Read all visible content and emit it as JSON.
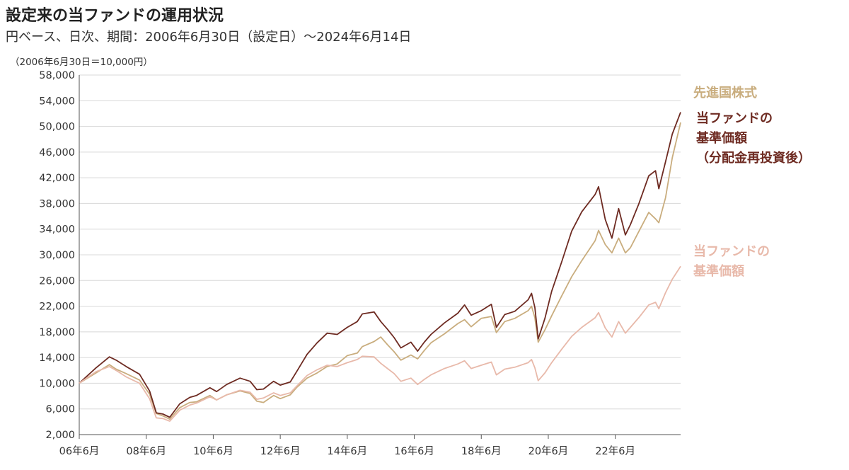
{
  "header": {
    "title": "設定来の当ファンドの運用状況",
    "subtitle": "円ベース、日次、期間：2006年6月30日（設定日）～2024年6月14日",
    "unit_note": "（2006年6月30日＝10,000円）"
  },
  "colors": {
    "developed": "#c9ad7e",
    "reinvested": "#6e2b22",
    "nav": "#e8b9aa",
    "grid": "#d8d8d8",
    "axis": "#555555"
  },
  "legend": {
    "developed": [
      "先進国株式"
    ],
    "reinvested": [
      "当ファンドの",
      "基準価額",
      "（分配金再投資後）"
    ],
    "nav": [
      "当ファンドの",
      "基準価額"
    ]
  },
  "chart_data": {
    "type": "line",
    "title": "設定来の当ファンドの運用状況",
    "ylim": [
      2000,
      58000
    ],
    "xlim": [
      2006.5,
      2024.45
    ],
    "y_ticks": [
      2000,
      6000,
      10000,
      14000,
      18000,
      22000,
      26000,
      30000,
      34000,
      38000,
      42000,
      46000,
      50000,
      54000,
      58000
    ],
    "y_tick_labels": [
      "2,000",
      "6,000",
      "10,000",
      "14,000",
      "18,000",
      "22,000",
      "26,000",
      "30,000",
      "34,000",
      "38,000",
      "42,000",
      "46,000",
      "50,000",
      "54,000",
      "58,000"
    ],
    "x_ticks": [
      2006.5,
      2008.5,
      2010.5,
      2012.5,
      2014.5,
      2016.5,
      2018.5,
      2020.5,
      2022.5
    ],
    "x_tick_labels": [
      "06年6月",
      "08年6月",
      "10年6月",
      "12年6月",
      "14年6月",
      "16年6月",
      "18年6月",
      "20年6月",
      "22年6月"
    ],
    "grid": "horizontal",
    "series": [
      {
        "name": "先進国株式",
        "color_key": "developed",
        "x": [
          2006.5,
          2007.0,
          2007.4,
          2007.6,
          2007.9,
          2008.3,
          2008.6,
          2008.8,
          2009.0,
          2009.2,
          2009.5,
          2009.8,
          2010.0,
          2010.4,
          2010.6,
          2010.9,
          2011.3,
          2011.6,
          2011.8,
          2012.0,
          2012.3,
          2012.5,
          2012.8,
          2013.0,
          2013.3,
          2013.6,
          2013.9,
          2014.2,
          2014.5,
          2014.8,
          2014.95,
          2015.3,
          2015.5,
          2015.7,
          2015.9,
          2016.1,
          2016.4,
          2016.6,
          2016.8,
          2017.0,
          2017.4,
          2017.8,
          2018.0,
          2018.2,
          2018.5,
          2018.8,
          2018.95,
          2019.2,
          2019.5,
          2019.9,
          2020.0,
          2020.1,
          2020.2,
          2020.4,
          2020.6,
          2020.9,
          2021.2,
          2021.5,
          2021.9,
          2022.0,
          2022.2,
          2022.4,
          2022.6,
          2022.8,
          2022.95,
          2023.2,
          2023.5,
          2023.7,
          2023.8,
          2024.0,
          2024.2,
          2024.45
        ],
        "y": [
          10000,
          11600,
          12900,
          12200,
          11500,
          10500,
          8300,
          5300,
          4900,
          4400,
          6200,
          7000,
          7100,
          8100,
          7400,
          8200,
          8800,
          8400,
          7200,
          7000,
          8100,
          7600,
          8200,
          9400,
          10800,
          11600,
          12600,
          13000,
          14300,
          14700,
          15700,
          16500,
          17200,
          16000,
          14900,
          13600,
          14400,
          13800,
          15100,
          16300,
          17700,
          19300,
          19900,
          18800,
          20100,
          20400,
          17900,
          19600,
          20100,
          21300,
          22000,
          20200,
          16400,
          18300,
          20500,
          23600,
          26600,
          29100,
          32200,
          33800,
          31600,
          30300,
          32600,
          30300,
          31100,
          33600,
          36600,
          35600,
          35000,
          38900,
          45100,
          50600
        ]
      },
      {
        "name": "当ファンドの基準価額（分配金再投資後）",
        "color_key": "reinvested",
        "x": [
          2006.5,
          2007.0,
          2007.4,
          2007.6,
          2007.9,
          2008.3,
          2008.6,
          2008.8,
          2009.0,
          2009.2,
          2009.5,
          2009.8,
          2010.0,
          2010.4,
          2010.6,
          2010.9,
          2011.3,
          2011.6,
          2011.8,
          2012.0,
          2012.3,
          2012.5,
          2012.8,
          2013.0,
          2013.3,
          2013.6,
          2013.9,
          2014.2,
          2014.5,
          2014.8,
          2014.95,
          2015.3,
          2015.5,
          2015.7,
          2015.9,
          2016.1,
          2016.4,
          2016.6,
          2016.8,
          2017.0,
          2017.4,
          2017.8,
          2018.0,
          2018.2,
          2018.5,
          2018.8,
          2018.95,
          2019.2,
          2019.5,
          2019.9,
          2020.0,
          2020.1,
          2020.2,
          2020.4,
          2020.6,
          2020.9,
          2021.2,
          2021.5,
          2021.9,
          2022.0,
          2022.2,
          2022.4,
          2022.6,
          2022.8,
          2022.95,
          2023.2,
          2023.5,
          2023.7,
          2023.8,
          2024.0,
          2024.2,
          2024.45
        ],
        "y": [
          10000,
          12400,
          14100,
          13600,
          12600,
          11400,
          8800,
          5400,
          5200,
          4700,
          6800,
          7800,
          8100,
          9300,
          8700,
          9800,
          10800,
          10300,
          9000,
          9100,
          10300,
          9700,
          10200,
          11900,
          14500,
          16300,
          17800,
          17600,
          18700,
          19600,
          20800,
          21100,
          19600,
          18400,
          17100,
          15500,
          16400,
          15000,
          16400,
          17600,
          19400,
          20900,
          22200,
          20600,
          21300,
          22300,
          18700,
          20700,
          21200,
          23000,
          24000,
          21800,
          16900,
          20100,
          24300,
          28900,
          33700,
          36700,
          39400,
          40600,
          35500,
          32600,
          37200,
          33100,
          34700,
          37900,
          42300,
          43100,
          40300,
          44500,
          48800,
          52200
        ]
      },
      {
        "name": "当ファンドの基準価額",
        "color_key": "nav",
        "x": [
          2006.5,
          2007.0,
          2007.4,
          2007.6,
          2007.9,
          2008.3,
          2008.6,
          2008.8,
          2009.0,
          2009.2,
          2009.5,
          2009.8,
          2010.0,
          2010.4,
          2010.6,
          2010.9,
          2011.3,
          2011.6,
          2011.8,
          2012.0,
          2012.3,
          2012.5,
          2012.8,
          2013.0,
          2013.3,
          2013.6,
          2013.9,
          2014.2,
          2014.5,
          2014.8,
          2014.95,
          2015.3,
          2015.5,
          2015.7,
          2015.9,
          2016.1,
          2016.4,
          2016.6,
          2016.8,
          2017.0,
          2017.4,
          2017.8,
          2018.0,
          2018.2,
          2018.5,
          2018.8,
          2018.95,
          2019.2,
          2019.5,
          2019.9,
          2020.0,
          2020.1,
          2020.2,
          2020.4,
          2020.6,
          2020.9,
          2021.2,
          2021.5,
          2021.9,
          2022.0,
          2022.2,
          2022.4,
          2022.6,
          2022.8,
          2022.95,
          2023.2,
          2023.5,
          2023.7,
          2023.8,
          2024.0,
          2024.2,
          2024.45
        ],
        "y": [
          10000,
          11800,
          12600,
          12000,
          11000,
          10000,
          7600,
          4600,
          4500,
          4100,
          5800,
          6600,
          6900,
          7900,
          7400,
          8200,
          8900,
          8600,
          7500,
          7700,
          8500,
          8100,
          8500,
          9600,
          11200,
          12100,
          12800,
          12600,
          13200,
          13700,
          14200,
          14100,
          13100,
          12300,
          11500,
          10300,
          10800,
          9800,
          10600,
          11300,
          12300,
          13000,
          13500,
          12300,
          12800,
          13300,
          11300,
          12200,
          12500,
          13200,
          13700,
          12400,
          10400,
          11600,
          13200,
          15300,
          17300,
          18700,
          20200,
          21000,
          18600,
          17200,
          19600,
          17800,
          18700,
          20200,
          22200,
          22600,
          21600,
          24100,
          26200,
          28200
        ]
      }
    ]
  }
}
